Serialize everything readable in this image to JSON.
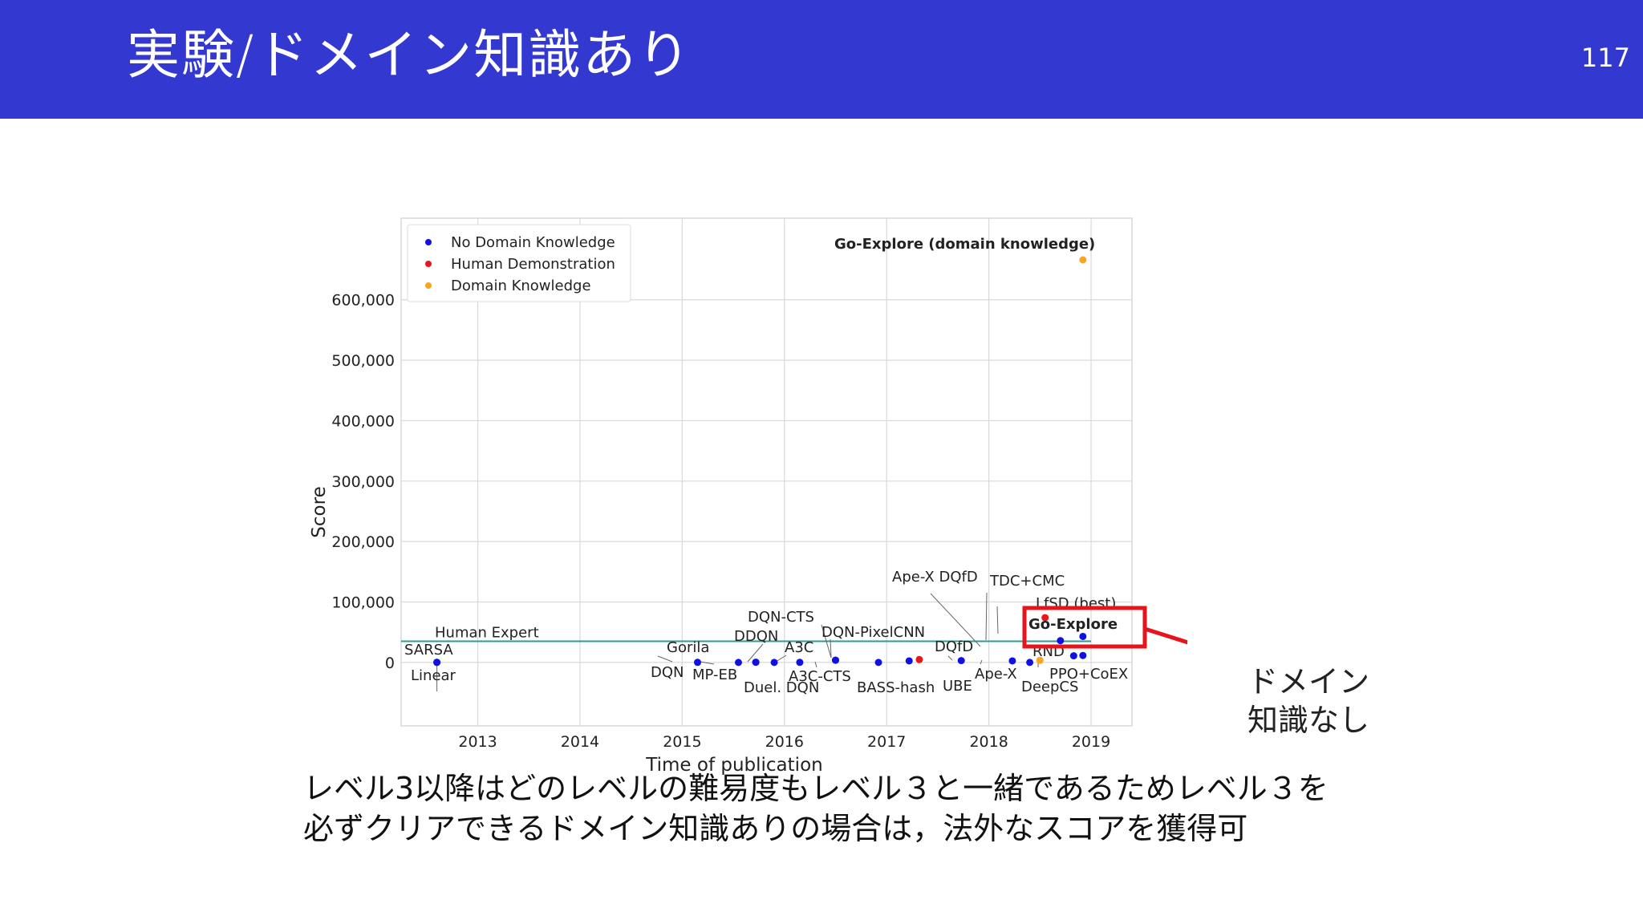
{
  "slide": {
    "title": "実験/ドメイン知識あり",
    "page_number": "117",
    "side_note": [
      "ドメイン",
      "知識なし"
    ],
    "caption": [
      "レベル3以降はどのレベルの難易度もレベル３と一緒であるためレベル３を",
      "必ずクリアできるドメイン知識ありの場合は，法外なスコアを獲得可"
    ]
  },
  "chart_data": {
    "type": "scatter",
    "xlabel": "Time of publication",
    "ylabel": "Score",
    "xlim": [
      2012.25,
      2019.4
    ],
    "ylim": [
      -105000,
      735000
    ],
    "x_ticks": [
      2013,
      2014,
      2015,
      2016,
      2017,
      2018,
      2019
    ],
    "x_tick_labels": [
      "2013",
      "2014",
      "2015",
      "2016",
      "2017",
      "2018",
      "2019"
    ],
    "y_ticks": [
      0,
      100000,
      200000,
      300000,
      400000,
      500000,
      600000
    ],
    "y_tick_labels": [
      "0",
      "100,000",
      "200,000",
      "300,000",
      "400,000",
      "500,000",
      "600,000"
    ],
    "grid": true,
    "legend_position": "top-left",
    "series": [
      {
        "name": "No Domain Knowledge",
        "color": "#1010e0"
      },
      {
        "name": "Human Demonstration",
        "color": "#e81818"
      },
      {
        "name": "Domain Knowledge",
        "color": "#f5a623"
      }
    ],
    "points": [
      {
        "label": "SARSA",
        "x": 2012.6,
        "y": 100,
        "series": 0
      },
      {
        "label": "Linear",
        "x": 2012.6,
        "y": 100,
        "series": 0
      },
      {
        "label": "DQN",
        "x": 2015.15,
        "y": 100,
        "series": 0
      },
      {
        "label": "Gorila",
        "x": 2015.55,
        "y": 0,
        "series": 0
      },
      {
        "label": "MP-EB",
        "x": 2015.72,
        "y": 200,
        "series": 0
      },
      {
        "label": "DDQN",
        "x": 2015.72,
        "y": 400,
        "series": 0
      },
      {
        "label": "Duel. DQN",
        "x": 2015.9,
        "y": 0,
        "series": 0
      },
      {
        "label": "A3C",
        "x": 2016.15,
        "y": 100,
        "series": 0
      },
      {
        "label": "A3C-CTS",
        "x": 2016.5,
        "y": 3700,
        "series": 0
      },
      {
        "label": "DQN-CTS",
        "x": 2016.5,
        "y": 3700,
        "series": 0
      },
      {
        "label": "BASS-hash",
        "x": 2016.92,
        "y": 0,
        "series": 0
      },
      {
        "label": "DQN-PixelCNN",
        "x": 2017.22,
        "y": 2500,
        "series": 0
      },
      {
        "label": "DQfD",
        "x": 2017.32,
        "y": 4700,
        "series": 1
      },
      {
        "label": "UBE",
        "x": 2017.73,
        "y": 3000,
        "series": 0
      },
      {
        "label": "Ape-X",
        "x": 2018.23,
        "y": 2500,
        "series": 0
      },
      {
        "label": "Ape-X DQfD",
        "x": 2018.4,
        "y": 0,
        "series": 0
      },
      {
        "label": "DeepCS",
        "x": 2018.5,
        "y": 3500,
        "series": 2
      },
      {
        "label": "TDC+CMC",
        "x": 2018.55,
        "y": 74000,
        "series": 1
      },
      {
        "label": "RND",
        "x": 2018.83,
        "y": 11000,
        "series": 0
      },
      {
        "label": "PPO+CoEX",
        "x": 2018.92,
        "y": 11500,
        "series": 0
      },
      {
        "label": "LfSD (best)",
        "x": 2018.7,
        "y": 36000,
        "series": 0
      },
      {
        "label": "Go-Explore",
        "x": 2018.92,
        "y": 43000,
        "series": 0
      },
      {
        "label": "Go-Explore (domain knowledge)",
        "x": 2018.92,
        "y": 666000,
        "series": 2
      }
    ],
    "human_expert": {
      "label": "Human Expert",
      "y": 35000,
      "x_start": 2012.25,
      "x_end": 2019
    }
  }
}
